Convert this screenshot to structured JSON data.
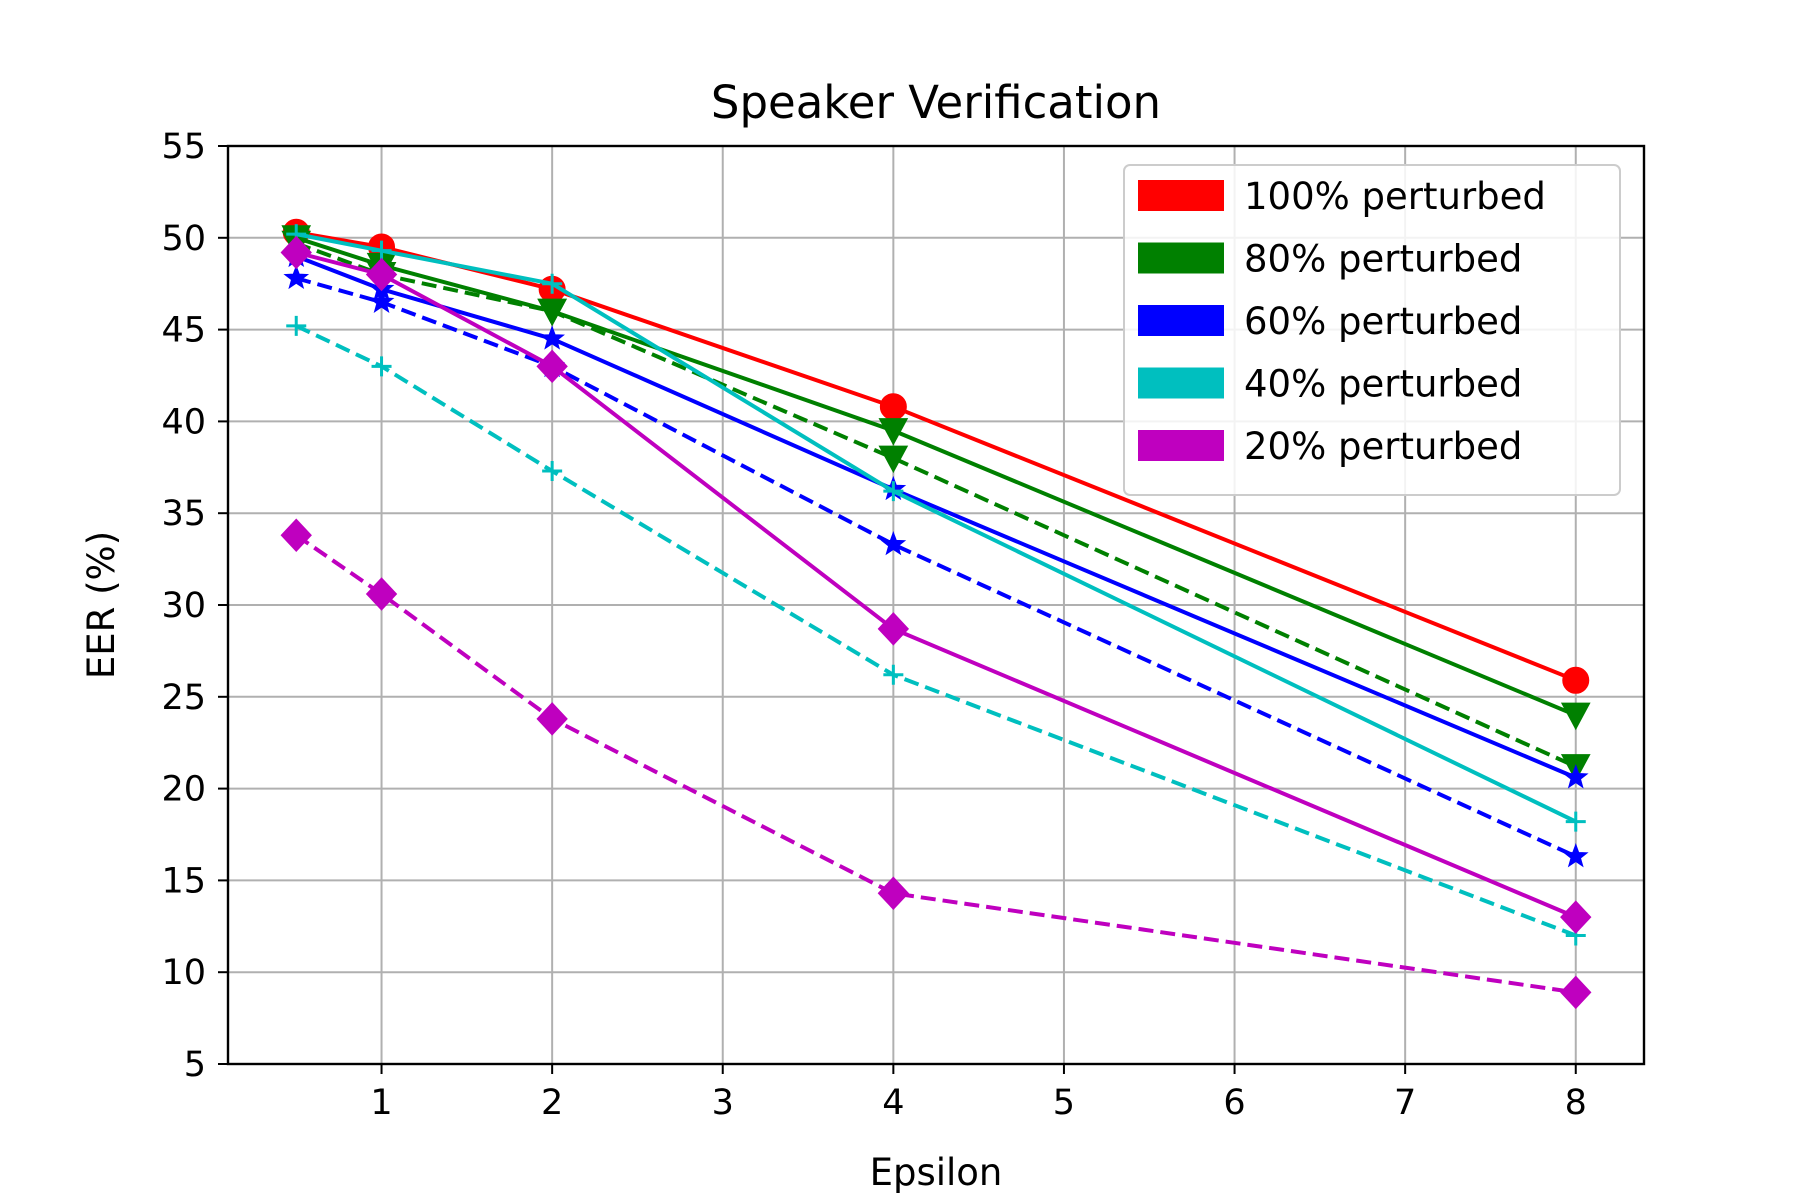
{
  "chart_data": {
    "type": "line",
    "title": "Speaker Verification",
    "xlabel": "Epsilon",
    "ylabel": "EER (%)",
    "x": [
      0.5,
      1,
      2,
      4,
      8
    ],
    "xlim": [
      0.1,
      8.4
    ],
    "ylim": [
      5,
      55
    ],
    "xticks": [
      1,
      2,
      3,
      4,
      5,
      6,
      7,
      8
    ],
    "yticks": [
      5,
      10,
      15,
      20,
      25,
      30,
      35,
      40,
      45,
      50,
      55
    ],
    "grid": true,
    "legend_position": "top-right",
    "legend": [
      {
        "label": "100% perturbed",
        "color": "#ff0000"
      },
      {
        "label": "80% perturbed",
        "color": "#008000"
      },
      {
        "label": "60% perturbed",
        "color": "#0000ff"
      },
      {
        "label": "40% perturbed",
        "color": "#00bfbf"
      },
      {
        "label": "20% perturbed",
        "color": "#bf00bf"
      }
    ],
    "series": [
      {
        "color": "#ff0000",
        "dash": "solid",
        "marker": "circle",
        "values": [
          50.3,
          49.5,
          47.2,
          40.8,
          25.9
        ]
      },
      {
        "color": "#008000",
        "dash": "solid",
        "marker": "triangle-down",
        "values": [
          50.0,
          48.5,
          46.0,
          39.5,
          24.0
        ]
      },
      {
        "color": "#008000",
        "dash": "dashed",
        "marker": "triangle-down",
        "values": [
          49.7,
          48.0,
          46.0,
          38.0,
          21.2
        ]
      },
      {
        "color": "#0000ff",
        "dash": "solid",
        "marker": "star",
        "values": [
          49.0,
          47.2,
          44.5,
          36.3,
          20.6
        ]
      },
      {
        "color": "#0000ff",
        "dash": "dashed",
        "marker": "star",
        "values": [
          47.8,
          46.5,
          43.0,
          33.3,
          16.3
        ]
      },
      {
        "color": "#00bfbf",
        "dash": "solid",
        "marker": "plus",
        "values": [
          50.2,
          49.3,
          47.5,
          36.2,
          18.2
        ]
      },
      {
        "color": "#00bfbf",
        "dash": "dashed",
        "marker": "plus",
        "values": [
          45.2,
          43.0,
          37.3,
          26.2,
          12.0
        ]
      },
      {
        "color": "#bf00bf",
        "dash": "solid",
        "marker": "diamond",
        "values": [
          49.2,
          48.0,
          43.0,
          28.7,
          13.0
        ]
      },
      {
        "color": "#bf00bf",
        "dash": "dashed",
        "marker": "diamond",
        "values": [
          33.8,
          30.6,
          23.8,
          14.3,
          8.9
        ]
      }
    ]
  }
}
